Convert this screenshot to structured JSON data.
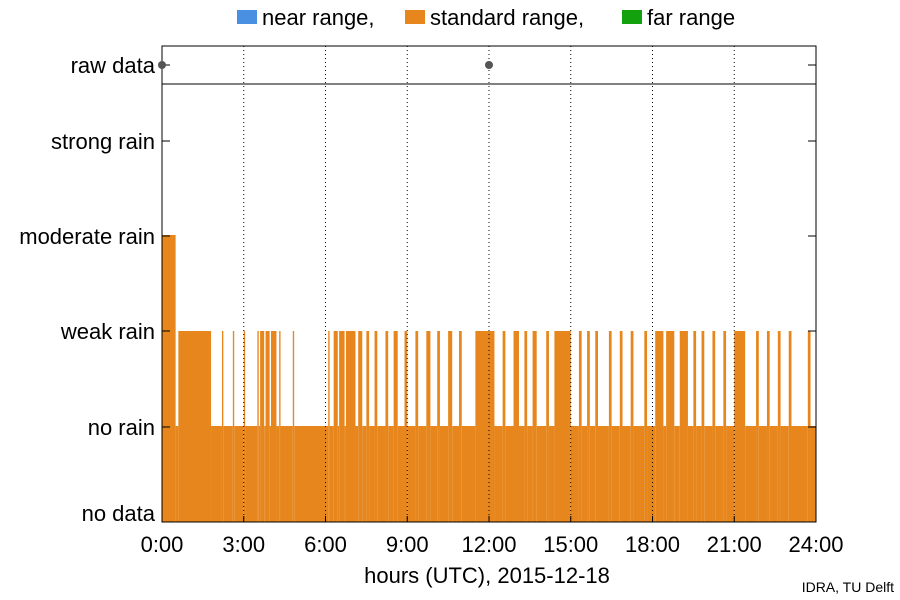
{
  "chart_data": {
    "type": "bar",
    "xlabel": "hours (UTC), 2015-12-18",
    "x_ticks": [
      "0:00",
      "3:00",
      "6:00",
      "9:00",
      "12:00",
      "15:00",
      "18:00",
      "21:00",
      "24:00"
    ],
    "xlim": [
      0,
      24
    ],
    "y_categories": [
      "no data",
      "no rain",
      "weak rain",
      "moderate rain",
      "strong rain"
    ],
    "raw_data_label": "raw data",
    "raw_data_points_hours": [
      0.0,
      12.0
    ],
    "grid": "vertical dotted at 3-hour ticks",
    "legend": {
      "placement": "top",
      "entries": [
        {
          "label": "near range,",
          "color": "#4a90e2"
        },
        {
          "label": "standard range,",
          "color": "#e6861c"
        },
        {
          "label": "far range",
          "color": "#13a10e"
        }
      ]
    },
    "series": [
      {
        "name": "standard range",
        "color": "#e6861c",
        "segments_note": "level index: 0=no data,1=no rain,2=weak rain,3=moderate rain",
        "segments": [
          [
            0.0,
            0.5,
            3
          ],
          [
            0.5,
            0.6,
            1
          ],
          [
            0.6,
            1.8,
            2
          ],
          [
            1.8,
            2.2,
            1
          ],
          [
            2.2,
            2.25,
            2
          ],
          [
            2.25,
            2.6,
            1
          ],
          [
            2.6,
            2.65,
            2
          ],
          [
            2.65,
            3.0,
            1
          ],
          [
            3.0,
            3.05,
            2
          ],
          [
            3.05,
            3.5,
            1
          ],
          [
            3.5,
            3.55,
            2
          ],
          [
            3.55,
            3.6,
            1
          ],
          [
            3.6,
            3.75,
            2
          ],
          [
            3.75,
            3.8,
            1
          ],
          [
            3.8,
            3.95,
            2
          ],
          [
            3.95,
            4.0,
            1
          ],
          [
            4.0,
            4.2,
            2
          ],
          [
            4.2,
            4.3,
            1
          ],
          [
            4.3,
            4.35,
            2
          ],
          [
            4.35,
            4.8,
            1
          ],
          [
            4.8,
            4.85,
            2
          ],
          [
            4.85,
            6.1,
            1
          ],
          [
            6.1,
            6.15,
            2
          ],
          [
            6.15,
            6.3,
            1
          ],
          [
            6.3,
            6.45,
            2
          ],
          [
            6.45,
            6.5,
            1
          ],
          [
            6.5,
            6.7,
            2
          ],
          [
            6.7,
            6.75,
            1
          ],
          [
            6.75,
            7.1,
            2
          ],
          [
            7.1,
            7.2,
            1
          ],
          [
            7.2,
            7.35,
            2
          ],
          [
            7.35,
            7.5,
            1
          ],
          [
            7.5,
            7.6,
            2
          ],
          [
            7.6,
            7.8,
            1
          ],
          [
            7.8,
            7.9,
            2
          ],
          [
            7.9,
            8.2,
            1
          ],
          [
            8.2,
            8.3,
            2
          ],
          [
            8.3,
            8.5,
            1
          ],
          [
            8.5,
            8.65,
            2
          ],
          [
            8.65,
            8.9,
            1
          ],
          [
            8.9,
            9.0,
            2
          ],
          [
            9.0,
            9.3,
            1
          ],
          [
            9.3,
            9.4,
            2
          ],
          [
            9.4,
            9.7,
            1
          ],
          [
            9.7,
            9.85,
            2
          ],
          [
            9.85,
            10.1,
            1
          ],
          [
            10.1,
            10.2,
            2
          ],
          [
            10.2,
            10.5,
            1
          ],
          [
            10.5,
            10.65,
            2
          ],
          [
            10.65,
            10.9,
            1
          ],
          [
            10.9,
            11.0,
            2
          ],
          [
            11.0,
            11.5,
            1
          ],
          [
            11.5,
            12.2,
            2
          ],
          [
            12.2,
            12.5,
            1
          ],
          [
            12.5,
            12.6,
            2
          ],
          [
            12.6,
            12.9,
            1
          ],
          [
            12.9,
            13.1,
            2
          ],
          [
            13.1,
            13.3,
            1
          ],
          [
            13.3,
            13.4,
            2
          ],
          [
            13.4,
            13.6,
            1
          ],
          [
            13.6,
            13.75,
            2
          ],
          [
            13.75,
            14.1,
            1
          ],
          [
            14.1,
            14.2,
            2
          ],
          [
            14.2,
            14.4,
            1
          ],
          [
            14.4,
            15.0,
            2
          ],
          [
            15.0,
            15.3,
            1
          ],
          [
            15.3,
            15.4,
            2
          ],
          [
            15.4,
            15.6,
            1
          ],
          [
            15.6,
            15.7,
            2
          ],
          [
            15.7,
            15.9,
            1
          ],
          [
            15.9,
            16.0,
            2
          ],
          [
            16.0,
            16.4,
            1
          ],
          [
            16.4,
            16.5,
            2
          ],
          [
            16.5,
            16.8,
            1
          ],
          [
            16.8,
            16.9,
            2
          ],
          [
            16.9,
            17.2,
            1
          ],
          [
            17.2,
            17.3,
            2
          ],
          [
            17.3,
            17.7,
            1
          ],
          [
            17.7,
            17.8,
            2
          ],
          [
            17.8,
            18.1,
            1
          ],
          [
            18.1,
            18.4,
            2
          ],
          [
            18.4,
            18.5,
            1
          ],
          [
            18.5,
            18.8,
            2
          ],
          [
            18.8,
            19.0,
            1
          ],
          [
            19.0,
            19.3,
            2
          ],
          [
            19.3,
            19.5,
            1
          ],
          [
            19.5,
            19.6,
            2
          ],
          [
            19.6,
            19.8,
            1
          ],
          [
            19.8,
            19.9,
            2
          ],
          [
            19.9,
            20.2,
            1
          ],
          [
            20.2,
            20.3,
            2
          ],
          [
            20.3,
            20.6,
            1
          ],
          [
            20.6,
            20.7,
            2
          ],
          [
            20.7,
            21.0,
            1
          ],
          [
            21.0,
            21.4,
            2
          ],
          [
            21.4,
            21.8,
            1
          ],
          [
            21.8,
            21.9,
            2
          ],
          [
            21.9,
            22.2,
            1
          ],
          [
            22.2,
            22.3,
            2
          ],
          [
            22.3,
            22.6,
            1
          ],
          [
            22.6,
            22.7,
            2
          ],
          [
            22.7,
            23.0,
            1
          ],
          [
            23.0,
            23.1,
            2
          ],
          [
            23.1,
            23.7,
            1
          ],
          [
            23.7,
            23.8,
            2
          ],
          [
            23.8,
            24.0,
            1
          ]
        ]
      }
    ]
  },
  "credit": "IDRA, TU Delft"
}
